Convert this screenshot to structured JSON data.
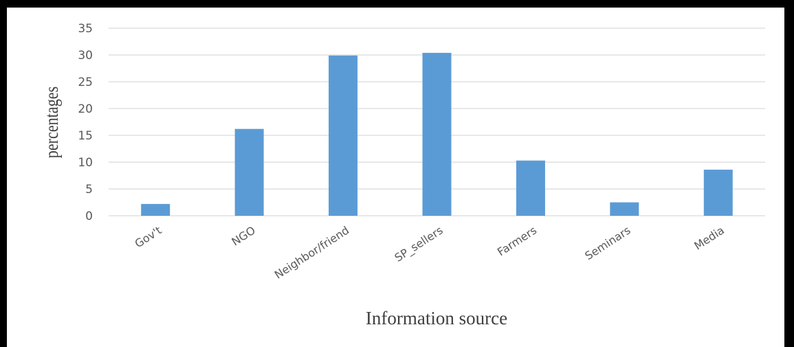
{
  "chart_data": {
    "type": "bar",
    "categories": [
      "Gov't",
      "NGO",
      "Neighbor/friend",
      "SP_sellers",
      "Farmers",
      "Seminars",
      "Media"
    ],
    "values": [
      2.2,
      16.2,
      29.9,
      30.4,
      10.3,
      2.5,
      8.6
    ],
    "title": "",
    "xlabel": "Information source",
    "ylabel": "percentages",
    "ylim": [
      0,
      35
    ],
    "yticks": [
      0,
      5,
      10,
      15,
      20,
      25,
      30,
      35
    ],
    "grid": true,
    "legend": "none",
    "bar_color": "#5B9BD5",
    "grid_color": "#D9D9D9",
    "frame_color": "#000000"
  }
}
